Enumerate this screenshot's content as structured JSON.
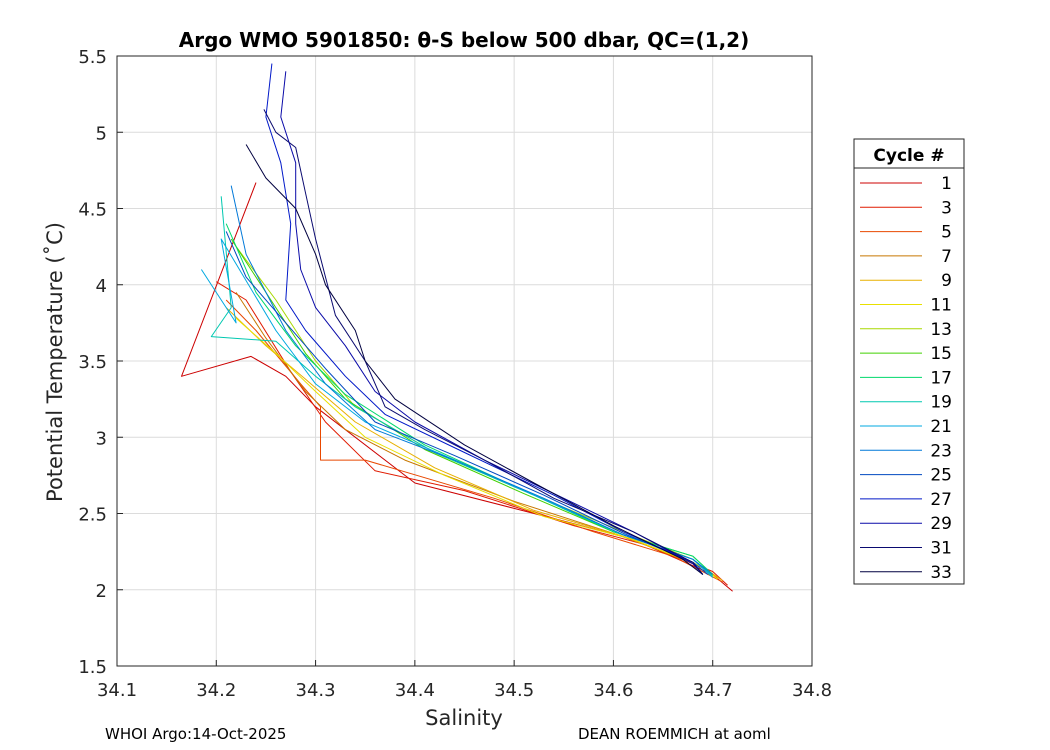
{
  "chart_data": {
    "type": "line",
    "title": "Argo WMO 5901850: θ-S below 500 dbar,  QC=(1,2)",
    "xlabel": "Salinity",
    "ylabel": "Potential Temperature (˚C)",
    "xlim": [
      34.1,
      34.8
    ],
    "ylim": [
      1.5,
      5.5
    ],
    "xticks": [
      "34.1",
      "34.2",
      "34.3",
      "34.4",
      "34.5",
      "34.6",
      "34.7",
      "34.8"
    ],
    "yticks": [
      "1.5",
      "2",
      "2.5",
      "3",
      "3.5",
      "4",
      "4.5",
      "5",
      "5.5"
    ],
    "grid": true,
    "legend_title": "Cycle #",
    "legend_position": "outside-right",
    "series": [
      {
        "name": "1",
        "color": "#cc0000",
        "x": [
          34.24,
          34.165,
          34.235,
          34.27,
          34.3,
          34.4,
          34.55,
          34.62,
          34.7,
          34.72
        ],
        "y": [
          4.67,
          3.4,
          3.53,
          3.4,
          3.2,
          2.7,
          2.45,
          2.33,
          2.1,
          1.99
        ]
      },
      {
        "name": "3",
        "color": "#e01a00",
        "x": [
          34.2,
          34.23,
          34.275,
          34.31,
          34.36,
          34.45,
          34.56,
          34.63,
          34.7,
          34.715
        ],
        "y": [
          4.02,
          3.9,
          3.43,
          3.1,
          2.78,
          2.65,
          2.42,
          2.3,
          2.12,
          2.03
        ]
      },
      {
        "name": "5",
        "color": "#e84800",
        "x": [
          34.21,
          34.24,
          34.285,
          34.305,
          34.305,
          34.35,
          34.48,
          34.58,
          34.66,
          34.71
        ],
        "y": [
          3.9,
          3.7,
          3.35,
          3.2,
          2.85,
          2.85,
          2.6,
          2.38,
          2.22,
          2.05
        ]
      },
      {
        "name": "7",
        "color": "#c87800",
        "x": [
          34.22,
          34.25,
          34.29,
          34.33,
          34.39,
          34.5,
          34.6,
          34.68,
          34.705
        ],
        "y": [
          3.95,
          3.65,
          3.3,
          3.05,
          2.85,
          2.58,
          2.37,
          2.18,
          2.08
        ]
      },
      {
        "name": "9",
        "color": "#e8b000",
        "x": [
          34.21,
          34.25,
          34.29,
          34.34,
          34.42,
          34.52,
          34.61,
          34.69,
          34.71
        ],
        "y": [
          3.85,
          3.6,
          3.38,
          3.1,
          2.8,
          2.52,
          2.35,
          2.15,
          2.06
        ]
      },
      {
        "name": "11",
        "color": "#e8e000",
        "x": [
          34.22,
          34.26,
          34.3,
          34.35,
          34.43,
          34.53,
          34.62,
          34.69,
          34.705
        ],
        "y": [
          3.78,
          3.55,
          3.3,
          3.0,
          2.75,
          2.48,
          2.33,
          2.15,
          2.07
        ]
      },
      {
        "name": "13",
        "color": "#a8d800",
        "x": [
          34.22,
          34.26,
          34.3,
          34.34,
          34.42,
          34.52,
          34.61,
          34.68,
          34.7
        ],
        "y": [
          4.25,
          3.9,
          3.5,
          3.2,
          2.9,
          2.62,
          2.38,
          2.2,
          2.08
        ]
      },
      {
        "name": "15",
        "color": "#40d000",
        "x": [
          34.215,
          34.25,
          34.29,
          34.33,
          34.41,
          34.51,
          34.6,
          34.68,
          34.7
        ],
        "y": [
          4.3,
          3.95,
          3.55,
          3.25,
          2.92,
          2.63,
          2.38,
          2.22,
          2.1
        ]
      },
      {
        "name": "17",
        "color": "#00d86c",
        "x": [
          34.21,
          34.24,
          34.28,
          34.33,
          34.41,
          34.51,
          34.6,
          34.68,
          34.7
        ],
        "y": [
          4.4,
          3.95,
          3.6,
          3.28,
          2.95,
          2.65,
          2.38,
          2.22,
          2.1
        ]
      },
      {
        "name": "19",
        "color": "#00c8b0",
        "x": [
          34.205,
          34.215,
          34.195,
          34.26,
          34.3,
          34.34,
          34.42,
          34.52,
          34.61,
          34.68,
          34.7
        ],
        "y": [
          4.58,
          3.85,
          3.66,
          3.63,
          3.4,
          3.2,
          2.9,
          2.62,
          2.36,
          2.2,
          2.09
        ]
      },
      {
        "name": "21",
        "color": "#00a8e0",
        "x": [
          34.185,
          34.22,
          34.205,
          34.26,
          34.3,
          34.35,
          34.43,
          34.52,
          34.61,
          34.68,
          34.7
        ],
        "y": [
          4.1,
          3.75,
          4.3,
          3.7,
          3.35,
          3.1,
          2.88,
          2.62,
          2.36,
          2.2,
          2.08
        ]
      },
      {
        "name": "23",
        "color": "#0078d8",
        "x": [
          34.215,
          34.23,
          34.27,
          34.31,
          34.36,
          34.44,
          34.53,
          34.61,
          34.68,
          34.7
        ],
        "y": [
          4.65,
          4.2,
          3.7,
          3.35,
          3.05,
          2.85,
          2.6,
          2.36,
          2.2,
          2.1
        ]
      },
      {
        "name": "25",
        "color": "#0048c0",
        "x": [
          34.21,
          34.23,
          34.27,
          34.31,
          34.36,
          34.44,
          34.53,
          34.61,
          34.68,
          34.695
        ],
        "y": [
          4.35,
          4.05,
          3.75,
          3.45,
          3.1,
          2.88,
          2.62,
          2.37,
          2.18,
          2.1
        ]
      },
      {
        "name": "27",
        "color": "#0018c8",
        "x": [
          34.256,
          34.25,
          34.265,
          34.275,
          34.27,
          34.29,
          34.33,
          34.37,
          34.45,
          34.54,
          34.61,
          34.68,
          34.69
        ],
        "y": [
          5.45,
          5.1,
          4.8,
          4.4,
          3.9,
          3.7,
          3.4,
          3.15,
          2.9,
          2.62,
          2.38,
          2.18,
          2.1
        ]
      },
      {
        "name": "29",
        "color": "#0a0aa8",
        "x": [
          34.27,
          34.265,
          34.28,
          34.28,
          34.285,
          34.3,
          34.33,
          34.36,
          34.4,
          34.47,
          34.55,
          34.62,
          34.68,
          34.69
        ],
        "y": [
          5.4,
          5.1,
          4.8,
          4.4,
          4.1,
          3.85,
          3.6,
          3.3,
          3.1,
          2.85,
          2.6,
          2.38,
          2.17,
          2.1
        ]
      },
      {
        "name": "31",
        "color": "#0a0a70",
        "x": [
          34.248,
          34.26,
          34.28,
          34.29,
          34.3,
          34.32,
          34.35,
          34.37,
          34.41,
          34.47,
          34.54,
          34.62,
          34.68,
          34.69
        ],
        "y": [
          5.15,
          5.0,
          4.9,
          4.6,
          4.3,
          3.8,
          3.5,
          3.2,
          3.05,
          2.85,
          2.6,
          2.38,
          2.18,
          2.1
        ]
      },
      {
        "name": "33",
        "color": "#000040",
        "x": [
          34.23,
          34.25,
          34.28,
          34.3,
          34.31,
          34.34,
          34.35,
          34.38,
          34.45,
          34.52,
          34.6,
          34.67,
          34.69
        ],
        "y": [
          4.92,
          4.7,
          4.5,
          4.2,
          4.0,
          3.7,
          3.5,
          3.25,
          2.95,
          2.7,
          2.42,
          2.2,
          2.1
        ]
      }
    ]
  },
  "footer": {
    "left": "WHOI Argo:14-Oct-2025",
    "right": "DEAN ROEMMICH at aoml"
  }
}
